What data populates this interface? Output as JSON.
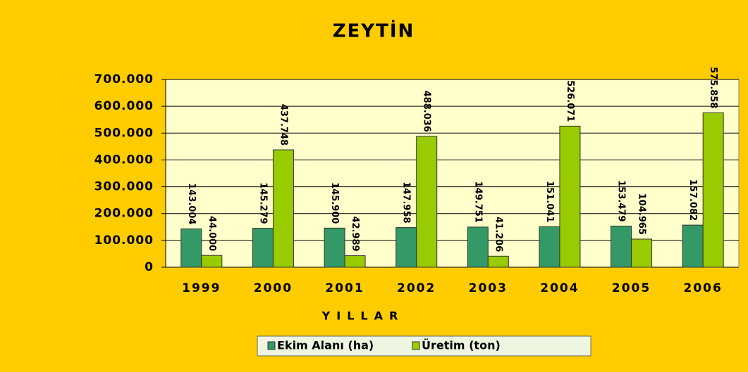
{
  "chart_data": {
    "type": "bar",
    "title": "ZEYTİN",
    "x_label": "YILLAR",
    "categories": [
      "1999",
      "2000",
      "2001",
      "2002",
      "2003",
      "2004",
      "2005",
      "2006"
    ],
    "series": [
      {
        "name": "Ekim Alanı (ha)",
        "color": "#339966",
        "values": [
          143004,
          145279,
          145900,
          147958,
          149751,
          151041,
          153479,
          157082
        ],
        "value_labels": [
          "143.004",
          "145.279",
          "145.900",
          "147.958",
          "149.751",
          "151.041",
          "153.479",
          "157.082"
        ]
      },
      {
        "name": "Üretim (ton)",
        "color": "#99cc00",
        "values": [
          44000,
          437748,
          42989,
          488036,
          41206,
          526071,
          104965,
          575858
        ],
        "value_labels": [
          "44.000",
          "437.748",
          "42.989",
          "488.036",
          "41.206",
          "526.071",
          "104.965",
          "575.858"
        ]
      }
    ],
    "ylim": [
      0,
      700000
    ],
    "yticks": [
      0,
      {
        "value": 100000,
        "label": "100.000"
      },
      {
        "value": 200000,
        "label": "200.000"
      },
      {
        "value": 300000,
        "label": "300.000"
      },
      {
        "value": 400000,
        "label": "400.000"
      },
      {
        "value": 500000,
        "label": "500.000"
      },
      {
        "value": 600000,
        "label": "600.000"
      },
      {
        "value": 700000,
        "label": "700.000"
      }
    ],
    "grid": true,
    "legend": "bottom"
  }
}
